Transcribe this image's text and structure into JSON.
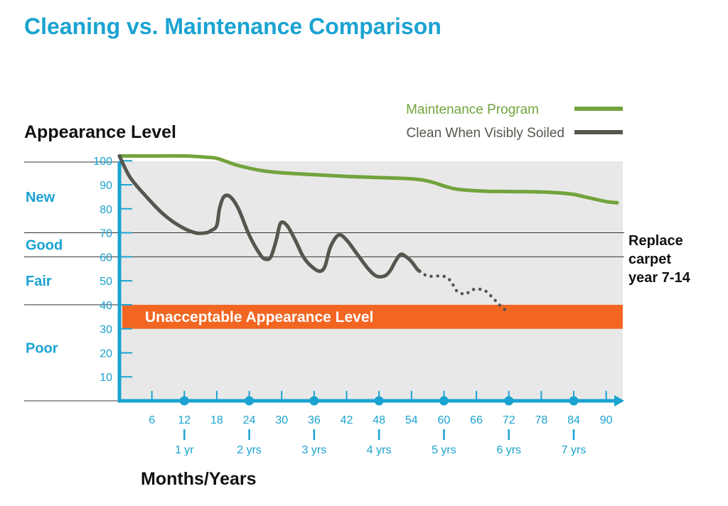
{
  "colors": {
    "accent": "#1aa3d1",
    "maintenance": "#72a33d",
    "soiled": "#55574f",
    "unacceptable": "#f26622",
    "plot_bg": "#e8e8e8"
  },
  "chart_data": {
    "type": "line",
    "title": "Cleaning vs. Maintenance Comparison",
    "ylabel": "Appearance Level",
    "xlabel": "Months/Years",
    "xlim": [
      0,
      92
    ],
    "ylim": [
      0,
      105
    ],
    "x_ticks": [
      6,
      12,
      18,
      24,
      30,
      36,
      42,
      48,
      54,
      60,
      66,
      72,
      78,
      84,
      90
    ],
    "x_tick_labels": [
      "6",
      "12",
      "18",
      "24",
      "30",
      "36",
      "42",
      "48",
      "54",
      "60",
      "66",
      "72",
      "78",
      "84",
      "90"
    ],
    "year_labels": [
      {
        "x": 12,
        "label": "1 yr"
      },
      {
        "x": 24,
        "label": "2 yrs"
      },
      {
        "x": 36,
        "label": "3 yrs"
      },
      {
        "x": 48,
        "label": "4 yrs"
      },
      {
        "x": 60,
        "label": "5 yrs"
      },
      {
        "x": 72,
        "label": "6 yrs"
      },
      {
        "x": 84,
        "label": "7 yrs"
      }
    ],
    "y_ticks": [
      10,
      20,
      30,
      40,
      50,
      60,
      70,
      80,
      90,
      100
    ],
    "y_tick_labels": [
      "10",
      "20",
      "30",
      "40",
      "50",
      "60",
      "70",
      "80",
      "90",
      "100"
    ],
    "levels": [
      {
        "name": "New",
        "y_center": 85
      },
      {
        "name": "Good",
        "y_center": 65
      },
      {
        "name": "Fair",
        "y_center": 50
      },
      {
        "name": "Poor",
        "y_center": 22
      }
    ],
    "level_divisions": [
      100,
      70,
      60,
      40,
      0
    ],
    "reference_lines": [
      70,
      60
    ],
    "unacceptable_band": {
      "from": 30,
      "to": 40,
      "label": "Unacceptable Appearance Level"
    },
    "series": [
      {
        "name": "Maintenance Program",
        "color": "#72a33d",
        "style": "solid",
        "x": [
          0,
          6,
          12,
          16,
          18,
          20,
          22,
          26,
          30,
          36,
          42,
          48,
          52,
          54,
          56,
          58,
          60,
          62,
          64,
          68,
          72,
          76,
          78,
          80,
          82,
          84,
          86,
          88,
          90,
          92
        ],
        "y": [
          102,
          102,
          102,
          101.5,
          101,
          99.5,
          98,
          96,
          95,
          94.2,
          93.5,
          93,
          92.7,
          92.5,
          92,
          91,
          89.5,
          88.3,
          87.8,
          87.3,
          87.2,
          87.1,
          87,
          86.8,
          86.5,
          86,
          85,
          84,
          83,
          82.5
        ]
      },
      {
        "name": "Clean When Visibly Soiled",
        "color": "#55574f",
        "style": "solid",
        "x": [
          0,
          2,
          5,
          8,
          11,
          14,
          16,
          17,
          18,
          18.5,
          19.3,
          20.5,
          22,
          24,
          26,
          27,
          28,
          29,
          29.8,
          31,
          32.5,
          34,
          35.5,
          37,
          38,
          39,
          40.5,
          42,
          44,
          46,
          47.5,
          49,
          50,
          51,
          52,
          53,
          54,
          55,
          55.5
        ],
        "y": [
          102,
          93,
          85,
          78,
          73,
          70,
          70,
          71,
          73,
          80,
          85,
          85,
          80,
          69,
          61,
          59,
          60,
          67,
          74,
          73,
          67,
          60,
          56,
          54,
          56,
          64,
          69,
          67,
          61,
          55,
          52,
          52,
          54,
          58,
          61,
          60,
          58,
          55,
          54
        ]
      },
      {
        "name": "Clean When Visibly Soiled (projected)",
        "color": "#55574f",
        "style": "dotted",
        "x": [
          55.5,
          57,
          59,
          60.5,
          61.5,
          62.5,
          64,
          65,
          66,
          67.5,
          69,
          70,
          71,
          71.5
        ],
        "y": [
          54,
          52,
          52,
          51.5,
          49,
          45.5,
          44.5,
          46,
          46.5,
          46,
          43,
          40.5,
          38.5,
          37.5
        ]
      }
    ],
    "legend": {
      "placement": "top-right",
      "entries": [
        {
          "label": "Maintenance Program",
          "color": "#72a33d"
        },
        {
          "label": "Clean When Visibly Soiled",
          "color": "#55574f"
        }
      ]
    },
    "annotations": [
      {
        "text_lines": [
          "Replace",
          "carpet",
          "year 7-14"
        ],
        "y": 70,
        "position": "right"
      }
    ]
  }
}
